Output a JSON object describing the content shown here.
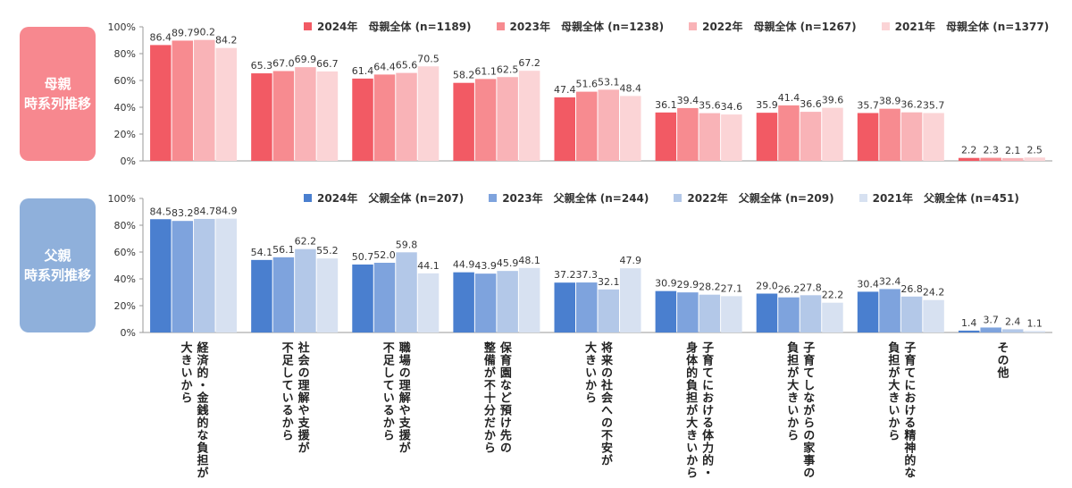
{
  "side_labels": {
    "mother": [
      "母親",
      "時系列推移"
    ],
    "father": [
      "父親",
      "時系列推移"
    ]
  },
  "colors": {
    "mother": [
      "#f25a64",
      "#f78b90",
      "#f9b3b7",
      "#fbd4d6"
    ],
    "father": [
      "#4a7fcf",
      "#7ea3dd",
      "#b3c8e8",
      "#d7e1f1"
    ]
  },
  "category_labels": [
    [
      "経済的・金銭的な負担が",
      "大きいから"
    ],
    [
      "社会の理解や支援が",
      "不足しているから"
    ],
    [
      "職場の理解や支援が",
      "不足しているから"
    ],
    [
      "保育園など預け先の",
      "整備が不十分だから"
    ],
    [
      "将来の社会への不安が",
      "大きいから"
    ],
    [
      "子育てにおける体力的・",
      "身体的負担が大きいから"
    ],
    [
      "子育てしながらの家事の",
      "負担が大きいから"
    ],
    [
      "子育てにおける精神的な",
      "負担が大きいから"
    ],
    [
      "その他"
    ]
  ],
  "chart_data": [
    {
      "type": "bar",
      "ylim": [
        0,
        100
      ],
      "yticks": [
        "0%",
        "20%",
        "40%",
        "60%",
        "80%",
        "100%"
      ],
      "grid": false,
      "legend_position": "top",
      "series": [
        {
          "name": "2024年　母親全体 (n=1189)",
          "values": [
            86.4,
            65.3,
            61.4,
            58.2,
            47.4,
            36.1,
            35.9,
            35.7,
            2.2
          ]
        },
        {
          "name": "2023年　母親全体 (n=1238)",
          "values": [
            89.7,
            67.0,
            64.4,
            61.1,
            51.6,
            39.4,
            41.4,
            38.9,
            2.3
          ]
        },
        {
          "name": "2022年　母親全体 (n=1267)",
          "values": [
            90.2,
            69.9,
            65.6,
            62.5,
            53.1,
            35.6,
            36.6,
            36.2,
            2.1
          ]
        },
        {
          "name": "2021年　母親全体 (n=1377)",
          "values": [
            84.2,
            66.7,
            70.5,
            67.2,
            48.4,
            34.6,
            39.6,
            35.7,
            2.5
          ]
        }
      ]
    },
    {
      "type": "bar",
      "ylim": [
        0,
        100
      ],
      "yticks": [
        "0%",
        "20%",
        "40%",
        "60%",
        "80%",
        "100%"
      ],
      "grid": false,
      "legend_position": "top",
      "series": [
        {
          "name": "2024年　父親全体 (n=207)",
          "values": [
            84.5,
            54.1,
            50.7,
            44.9,
            37.2,
            30.9,
            29.0,
            30.4,
            1.4
          ]
        },
        {
          "name": "2023年　父親全体 (n=244)",
          "values": [
            83.2,
            56.1,
            52.0,
            43.9,
            37.3,
            29.9,
            26.2,
            32.4,
            3.7
          ]
        },
        {
          "name": "2022年　父親全体 (n=209)",
          "values": [
            84.7,
            62.2,
            59.8,
            45.9,
            32.1,
            28.2,
            27.8,
            26.8,
            2.4
          ]
        },
        {
          "name": "2021年　父親全体 (n=451)",
          "values": [
            84.9,
            55.2,
            44.1,
            48.1,
            47.9,
            27.1,
            22.2,
            24.2,
            1.1
          ]
        }
      ]
    }
  ]
}
